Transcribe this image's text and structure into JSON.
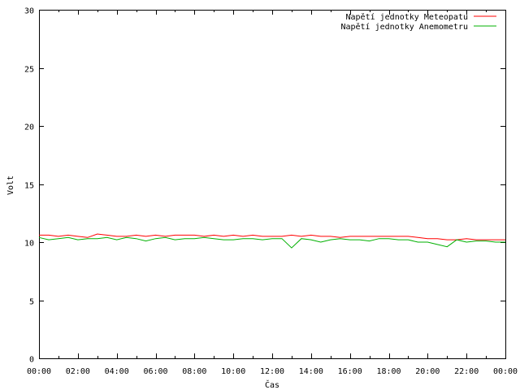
{
  "chart_data": {
    "type": "line",
    "title": "",
    "xlabel": "Čas",
    "ylabel": "Volt",
    "ylim": [
      0,
      30
    ],
    "yticks": [
      0,
      5,
      10,
      15,
      20,
      25,
      30
    ],
    "xlim_hours": [
      0,
      24
    ],
    "xtick_labels": [
      "00:00",
      "02:00",
      "04:00",
      "06:00",
      "08:00",
      "10:00",
      "12:00",
      "14:00",
      "16:00",
      "18:00",
      "20:00",
      "22:00",
      "00:00"
    ],
    "grid": false,
    "legend_position": "top-right",
    "x_time": [
      "00:00",
      "00:30",
      "01:00",
      "01:30",
      "02:00",
      "02:30",
      "03:00",
      "03:30",
      "04:00",
      "04:30",
      "05:00",
      "05:30",
      "06:00",
      "06:30",
      "07:00",
      "07:30",
      "08:00",
      "08:30",
      "09:00",
      "09:30",
      "10:00",
      "10:30",
      "11:00",
      "11:30",
      "12:00",
      "12:30",
      "13:00",
      "13:30",
      "14:00",
      "14:30",
      "15:00",
      "15:30",
      "16:00",
      "16:30",
      "17:00",
      "17:30",
      "18:00",
      "18:30",
      "19:00",
      "19:30",
      "20:00",
      "20:30",
      "21:00",
      "21:30",
      "22:00",
      "22:30",
      "23:00",
      "23:30",
      "24:00"
    ],
    "series": [
      {
        "name": "Napětí jednotky Meteopatu",
        "color": "#ff0000",
        "values": [
          10.6,
          10.6,
          10.5,
          10.6,
          10.5,
          10.4,
          10.7,
          10.6,
          10.5,
          10.5,
          10.6,
          10.5,
          10.6,
          10.5,
          10.6,
          10.6,
          10.6,
          10.5,
          10.6,
          10.5,
          10.6,
          10.5,
          10.6,
          10.5,
          10.5,
          10.5,
          10.6,
          10.5,
          10.6,
          10.5,
          10.5,
          10.4,
          10.5,
          10.5,
          10.5,
          10.5,
          10.5,
          10.5,
          10.5,
          10.4,
          10.3,
          10.3,
          10.2,
          10.2,
          10.3,
          10.2,
          10.2,
          10.2,
          10.2
        ]
      },
      {
        "name": "Napětí jednotky Anemometru",
        "color": "#00b000",
        "values": [
          10.4,
          10.2,
          10.3,
          10.4,
          10.2,
          10.3,
          10.3,
          10.4,
          10.2,
          10.4,
          10.3,
          10.1,
          10.3,
          10.4,
          10.2,
          10.3,
          10.3,
          10.4,
          10.3,
          10.2,
          10.2,
          10.3,
          10.3,
          10.2,
          10.3,
          10.3,
          9.5,
          10.3,
          10.2,
          10.0,
          10.2,
          10.3,
          10.2,
          10.2,
          10.1,
          10.3,
          10.3,
          10.2,
          10.2,
          10.0,
          10.0,
          9.8,
          9.6,
          10.2,
          10.0,
          10.1,
          10.1,
          10.0,
          10.0
        ]
      }
    ]
  }
}
